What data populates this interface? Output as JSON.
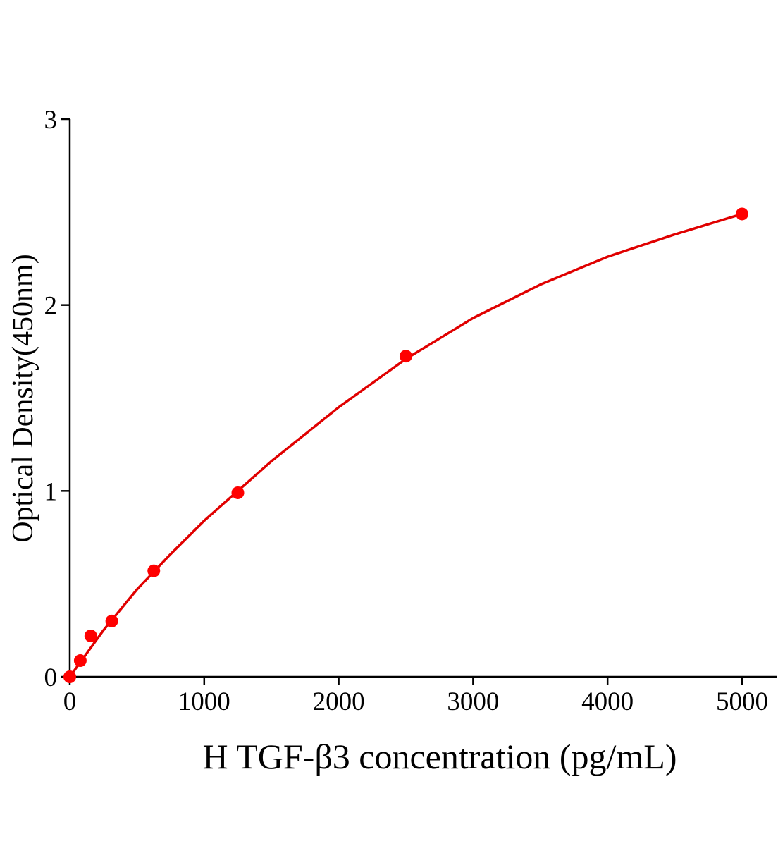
{
  "chart_data": {
    "type": "scatter",
    "x_label": "H TGF-β3 concentration (pg/mL)",
    "y_label": "Optical Density(450nm)",
    "x": [
      0,
      78.125,
      156.25,
      312.5,
      625,
      1250,
      2500,
      5000
    ],
    "values": [
      0,
      0.087,
      0.22,
      0.3,
      0.57,
      0.99,
      1.725,
      2.49
    ],
    "color": "#ff0000",
    "fit": {
      "color": "#e00000",
      "x": [
        0,
        250,
        500,
        750,
        1000,
        1500,
        2000,
        2500,
        3000,
        3500,
        4000,
        4500,
        5000
      ],
      "values": [
        0,
        0.25,
        0.47,
        0.66,
        0.84,
        1.16,
        1.45,
        1.71,
        1.93,
        2.11,
        2.26,
        2.38,
        2.49
      ]
    },
    "xlim": [
      0,
      5257
    ],
    "xticks": [
      0,
      1000,
      2000,
      3000,
      4000,
      5000
    ],
    "ylim": [
      0,
      3
    ],
    "yticks": [
      0,
      1,
      2,
      3
    ]
  }
}
